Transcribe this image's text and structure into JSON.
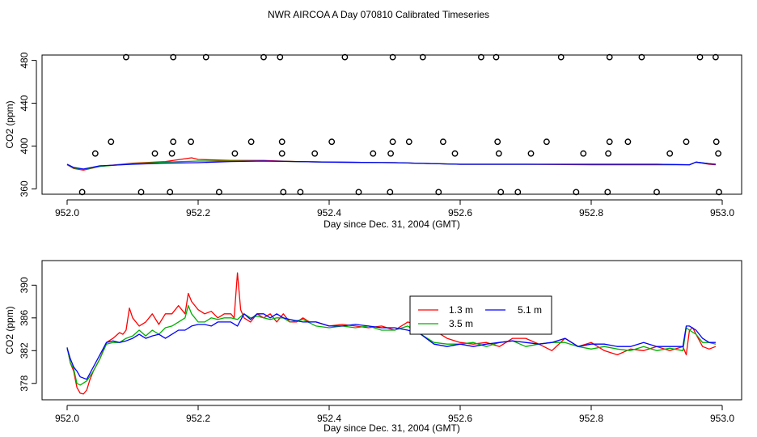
{
  "figure_title": "NWR AIRCOA A  Day 070810  Calibrated Timeseries",
  "colors": {
    "series_1": "#ff0000",
    "series_2": "#00b000",
    "series_3": "#0000ff",
    "axis": "#000000",
    "points": "#000000"
  },
  "chart_data": [
    {
      "type": "line",
      "title": "",
      "xlabel": "Day since Dec. 31, 2004 (GMT)",
      "ylabel": "CO2 (ppm)",
      "xlim": [
        952.0,
        953.0
      ],
      "ylim": [
        355,
        485
      ],
      "x_ticks": [
        952.0,
        952.2,
        952.4,
        952.6,
        952.8,
        953.0
      ],
      "x_tick_labels": [
        "952.0",
        "952.2",
        "952.4",
        "952.6",
        "952.8",
        "953.0"
      ],
      "y_ticks": [
        360,
        400,
        440,
        480
      ],
      "y_tick_labels": [
        "360",
        "400",
        "440",
        "480"
      ],
      "series": [
        {
          "name": "1.3 m",
          "color": "#ff0000",
          "x": [
            952.0,
            952.01,
            952.025,
            952.05,
            952.1,
            952.15,
            952.19,
            952.2,
            952.25,
            952.3,
            952.35,
            952.4,
            952.5,
            952.6,
            952.7,
            952.8,
            952.9,
            952.95,
            952.96,
            952.98,
            952.99
          ],
          "y": [
            382.5,
            379,
            377.5,
            381,
            384,
            385.5,
            389,
            387.5,
            386.5,
            386.5,
            385.5,
            385,
            384.5,
            383,
            383,
            382.5,
            382.5,
            382.5,
            385,
            383,
            382.5
          ]
        },
        {
          "name": "3.5 m",
          "color": "#00b000",
          "x": [
            952.0,
            952.01,
            952.025,
            952.05,
            952.1,
            952.15,
            952.2,
            952.25,
            952.3,
            952.35,
            952.4,
            952.5,
            952.6,
            952.7,
            952.8,
            952.9,
            952.95,
            952.96,
            952.98,
            952.99
          ],
          "y": [
            382.5,
            379.5,
            378,
            381,
            383.5,
            385,
            386,
            386,
            386,
            385.5,
            385,
            384.5,
            383,
            383,
            383,
            383,
            382.5,
            385,
            383.5,
            383
          ]
        },
        {
          "name": "5.1 m",
          "color": "#0000ff",
          "x": [
            952.0,
            952.01,
            952.025,
            952.05,
            952.1,
            952.15,
            952.2,
            952.25,
            952.3,
            952.35,
            952.4,
            952.5,
            952.6,
            952.7,
            952.8,
            952.9,
            952.95,
            952.96,
            952.98,
            952.99
          ],
          "y": [
            383,
            380,
            378.5,
            381.5,
            383,
            384,
            384.5,
            385.5,
            386,
            385.5,
            385,
            384.5,
            383,
            383,
            383,
            383,
            382.5,
            385,
            383.5,
            383
          ]
        }
      ],
      "scatter": {
        "name": "points",
        "x": [
          952.09,
          952.162,
          952.212,
          952.3,
          952.325,
          952.424,
          952.497,
          952.543,
          952.632,
          952.655,
          952.754,
          952.828,
          952.877,
          952.966,
          952.99,
          952.067,
          952.162,
          952.189,
          952.281,
          952.328,
          952.404,
          952.497,
          952.522,
          952.574,
          952.657,
          952.732,
          952.828,
          952.856,
          952.945,
          952.991,
          952.043,
          952.134,
          952.16,
          952.256,
          952.328,
          952.378,
          952.467,
          952.494,
          952.592,
          952.659,
          952.708,
          952.788,
          952.826,
          952.92,
          952.994,
          952.023,
          952.113,
          952.157,
          952.232,
          952.33,
          952.356,
          952.445,
          952.493,
          952.567,
          952.662,
          952.688,
          952.777,
          952.825,
          952.9,
          952.995
        ],
        "y": [
          483,
          483,
          483,
          483,
          483,
          483,
          483,
          483,
          483,
          483,
          483,
          483,
          483,
          483,
          483,
          404,
          404,
          404,
          404,
          404,
          404,
          404,
          404,
          404,
          404,
          404,
          404,
          404,
          404,
          404,
          393,
          393,
          393,
          393,
          393,
          393,
          393,
          393,
          393,
          393,
          393,
          393,
          393,
          393,
          393,
          357,
          357,
          357,
          357,
          357,
          357,
          357,
          357,
          357,
          357,
          357,
          357,
          357,
          357,
          357
        ]
      }
    },
    {
      "type": "line",
      "title": "",
      "xlabel": "Day since Dec. 31, 2004 (GMT)",
      "ylabel": "CO2 (ppm)",
      "xlim": [
        952.0,
        953.0
      ],
      "ylim": [
        376,
        393
      ],
      "x_ticks": [
        952.0,
        952.2,
        952.4,
        952.6,
        952.8,
        953.0
      ],
      "x_tick_labels": [
        "952.0",
        "952.2",
        "952.4",
        "952.6",
        "952.8",
        "953.0"
      ],
      "y_ticks": [
        378,
        382,
        386,
        390
      ],
      "y_tick_labels": [
        "378",
        "382",
        "386",
        "390"
      ],
      "legend": {
        "position": "center-right",
        "entries": [
          "1.3 m",
          "3.5 m",
          "5.1 m"
        ]
      },
      "series": [
        {
          "name": "1.3 m",
          "color": "#ff0000",
          "x": [
            952.0,
            952.005,
            952.01,
            952.015,
            952.02,
            952.025,
            952.03,
            952.035,
            952.04,
            952.05,
            952.06,
            952.07,
            952.08,
            952.085,
            952.09,
            952.095,
            952.1,
            952.11,
            952.12,
            952.13,
            952.14,
            952.15,
            952.16,
            952.17,
            952.18,
            952.185,
            952.19,
            952.2,
            952.21,
            952.22,
            952.23,
            952.24,
            952.25,
            952.255,
            952.26,
            952.265,
            952.27,
            952.28,
            952.29,
            952.3,
            952.31,
            952.32,
            952.33,
            952.34,
            952.35,
            952.36,
            952.37,
            952.38,
            952.4,
            952.42,
            952.44,
            952.46,
            952.48,
            952.5,
            952.52,
            952.54,
            952.56,
            952.58,
            952.6,
            952.62,
            952.64,
            952.66,
            952.68,
            952.7,
            952.72,
            952.74,
            952.76,
            952.78,
            952.8,
            952.82,
            952.84,
            952.86,
            952.88,
            952.9,
            952.92,
            952.94,
            952.945,
            952.95,
            952.955,
            952.96,
            952.97,
            952.98,
            952.99
          ],
          "y": [
            382.4,
            380.5,
            379.5,
            377.5,
            376.8,
            376.7,
            377.2,
            378.5,
            379.5,
            381,
            383,
            383.5,
            384.2,
            384,
            384.5,
            387.2,
            386,
            385,
            385.5,
            386.5,
            385.2,
            386.5,
            386.5,
            387.5,
            386.5,
            389,
            388,
            387,
            386.5,
            386.8,
            386,
            386.5,
            386.5,
            386,
            391.5,
            387,
            386,
            385.5,
            386.5,
            386,
            386.5,
            385.5,
            386.5,
            385.5,
            385.5,
            386,
            385.5,
            385.5,
            385,
            385.2,
            385,
            384.8,
            385,
            384.5,
            385.5,
            385,
            384.5,
            383.5,
            383,
            382.8,
            383,
            382.5,
            383.5,
            383.5,
            382.8,
            382,
            383.5,
            382.5,
            383,
            382,
            381.5,
            382.2,
            382,
            382.5,
            382,
            382.5,
            381.5,
            384.5,
            384.8,
            384,
            382.5,
            382.2,
            382.5
          ]
        },
        {
          "name": "3.5 m",
          "color": "#00b000",
          "x": [
            952.0,
            952.005,
            952.01,
            952.015,
            952.02,
            952.03,
            952.04,
            952.05,
            952.06,
            952.07,
            952.08,
            952.09,
            952.1,
            952.11,
            952.12,
            952.13,
            952.14,
            952.15,
            952.16,
            952.17,
            952.18,
            952.185,
            952.19,
            952.2,
            952.21,
            952.22,
            952.23,
            952.24,
            952.25,
            952.26,
            952.27,
            952.28,
            952.29,
            952.3,
            952.31,
            952.32,
            952.33,
            952.34,
            952.36,
            952.38,
            952.4,
            952.42,
            952.44,
            952.46,
            952.48,
            952.5,
            952.52,
            952.54,
            952.56,
            952.58,
            952.6,
            952.62,
            952.64,
            952.66,
            952.68,
            952.7,
            952.72,
            952.74,
            952.76,
            952.78,
            952.8,
            952.82,
            952.84,
            952.86,
            952.88,
            952.9,
            952.92,
            952.94,
            952.945,
            952.95,
            952.96,
            952.97,
            952.98,
            952.99
          ],
          "y": [
            382.4,
            380.5,
            379.8,
            378,
            377.8,
            378.3,
            379.5,
            381,
            382.8,
            383,
            383,
            383.5,
            383.8,
            384.5,
            383.8,
            384.5,
            384,
            384.8,
            385,
            385.5,
            386,
            387.5,
            386.5,
            385.5,
            385.5,
            386,
            385.8,
            386,
            386,
            385.8,
            386.5,
            386,
            386.2,
            386,
            385.8,
            386,
            386,
            385.5,
            385.8,
            385,
            384.8,
            385,
            384.8,
            385,
            384.5,
            384.5,
            385,
            384,
            383,
            382.8,
            382.8,
            383,
            382.5,
            383,
            383.2,
            382.5,
            382.8,
            383,
            383,
            382.5,
            382.2,
            382.5,
            382.2,
            382,
            382.5,
            382,
            382.3,
            382,
            384.8,
            384.5,
            384,
            383,
            383,
            382.8
          ]
        },
        {
          "name": "5.1 m",
          "color": "#0000ff",
          "x": [
            952.0,
            952.005,
            952.01,
            952.015,
            952.02,
            952.03,
            952.04,
            952.05,
            952.06,
            952.07,
            952.08,
            952.09,
            952.1,
            952.11,
            952.12,
            952.13,
            952.14,
            952.15,
            952.16,
            952.17,
            952.18,
            952.19,
            952.2,
            952.21,
            952.22,
            952.23,
            952.24,
            952.25,
            952.26,
            952.27,
            952.28,
            952.29,
            952.3,
            952.31,
            952.32,
            952.33,
            952.34,
            952.36,
            952.38,
            952.4,
            952.42,
            952.44,
            952.46,
            952.48,
            952.5,
            952.52,
            952.54,
            952.56,
            952.58,
            952.6,
            952.62,
            952.64,
            952.66,
            952.68,
            952.7,
            952.72,
            952.74,
            952.76,
            952.78,
            952.8,
            952.82,
            952.84,
            952.86,
            952.88,
            952.9,
            952.92,
            952.94,
            952.945,
            952.95,
            952.96,
            952.97,
            952.98,
            952.99
          ],
          "y": [
            382.3,
            381,
            380,
            379.5,
            378.8,
            378.5,
            380,
            381.5,
            383,
            383.2,
            383,
            383.2,
            383.5,
            384,
            383.5,
            383.8,
            384,
            383.5,
            384,
            384.5,
            384.5,
            385,
            385.2,
            385.2,
            385,
            385.5,
            385.5,
            385.5,
            385,
            386.5,
            385.8,
            386.5,
            386.5,
            386,
            386.5,
            386,
            385.8,
            385.5,
            385.5,
            385,
            385,
            385.2,
            385,
            384.8,
            384.8,
            384.5,
            384,
            382.8,
            382.5,
            382.8,
            382.5,
            382.8,
            383,
            383.2,
            383,
            382.8,
            383,
            383.5,
            382.5,
            382.8,
            382.8,
            382.5,
            382.5,
            383,
            382.5,
            382.5,
            382.5,
            385,
            385,
            384.5,
            383.5,
            383,
            383
          ]
        }
      ]
    }
  ]
}
